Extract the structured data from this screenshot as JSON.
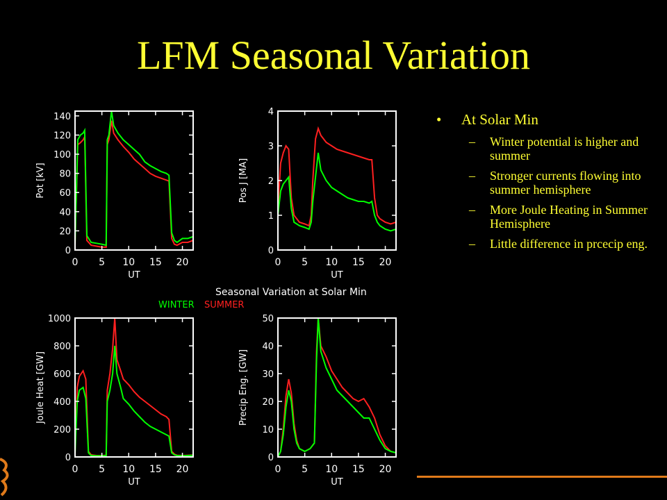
{
  "title": "LFM Seasonal Variation",
  "bullets": {
    "main": "At Solar Min",
    "items": [
      "Winter potential is higher and summer",
      "Stronger currents flowing into summer hemisphere",
      "More Joule Heating in Summer Hemisphere",
      "Little difference in prcecip eng."
    ]
  },
  "figure": {
    "caption": "Seasonal Variation at Solar Min",
    "legend": [
      {
        "label": "WINTER",
        "color": "#00ff00"
      },
      {
        "label": "SUMMER",
        "color": "#ff2020"
      }
    ]
  },
  "colors": {
    "title": "#ffff33",
    "text": "#ffff33",
    "axes": "#ffffff",
    "winter": "#00ff00",
    "summer": "#ff2020",
    "accent_line": "#e07a1a"
  },
  "chart_data": [
    {
      "type": "line",
      "xlabel": "UT",
      "ylabel": "Pot [kV]",
      "xlim": [
        0,
        22
      ],
      "ylim": [
        0,
        145
      ],
      "xticks": [
        0,
        5,
        10,
        15,
        20
      ],
      "yticks": [
        0,
        20,
        40,
        60,
        80,
        100,
        120,
        140
      ],
      "series": [
        {
          "name": "WINTER",
          "color": "#00ff00",
          "x": [
            0,
            0.5,
            1,
            1.5,
            1.8,
            2.2,
            3,
            4,
            5,
            5.8,
            6.0,
            6.3,
            6.8,
            7.2,
            8,
            9,
            10,
            11,
            12,
            13,
            14,
            15,
            16,
            17,
            17.5,
            18.0,
            18.5,
            19,
            20,
            21,
            22
          ],
          "y": [
            5,
            115,
            120,
            122,
            125,
            15,
            8,
            7,
            6,
            5,
            115,
            120,
            145,
            130,
            122,
            115,
            110,
            105,
            100,
            92,
            88,
            85,
            82,
            80,
            78,
            18,
            10,
            8,
            12,
            12,
            14
          ]
        },
        {
          "name": "SUMMER",
          "color": "#ff2020",
          "x": [
            0,
            0.5,
            1,
            1.5,
            1.8,
            2.2,
            3,
            4,
            5,
            5.8,
            6.0,
            6.3,
            6.8,
            7.2,
            8,
            9,
            10,
            11,
            12,
            13,
            14,
            15,
            16,
            17,
            17.5,
            18.0,
            18.5,
            19,
            20,
            21,
            22
          ],
          "y": [
            5,
            110,
            112,
            115,
            118,
            10,
            5,
            4,
            3,
            3,
            110,
            115,
            135,
            122,
            115,
            108,
            102,
            95,
            90,
            85,
            80,
            77,
            75,
            73,
            72,
            12,
            6,
            5,
            8,
            8,
            10
          ]
        }
      ]
    },
    {
      "type": "line",
      "xlabel": "UT",
      "ylabel": "Pos J [MA]",
      "xlim": [
        0,
        22
      ],
      "ylim": [
        0,
        4
      ],
      "xticks": [
        0,
        5,
        10,
        15,
        20
      ],
      "yticks": [
        0,
        1,
        2,
        3,
        4
      ],
      "series": [
        {
          "name": "WINTER",
          "color": "#00ff00",
          "x": [
            0,
            0.5,
            1,
            1.5,
            2,
            2.5,
            3,
            4,
            5,
            5.8,
            6.2,
            6.5,
            7,
            7.5,
            8,
            9,
            10,
            11,
            12,
            13,
            14,
            15,
            16,
            17,
            17.5,
            18.0,
            18.5,
            19,
            20,
            21,
            22
          ],
          "y": [
            1.0,
            1.7,
            1.9,
            2.0,
            2.1,
            1.2,
            0.8,
            0.7,
            0.65,
            0.6,
            0.8,
            1.4,
            2.1,
            2.8,
            2.3,
            2.0,
            1.8,
            1.7,
            1.6,
            1.5,
            1.45,
            1.4,
            1.4,
            1.35,
            1.4,
            1.0,
            0.8,
            0.7,
            0.6,
            0.55,
            0.6
          ]
        },
        {
          "name": "SUMMER",
          "color": "#ff2020",
          "x": [
            0,
            0.5,
            1,
            1.5,
            2,
            2.5,
            3,
            4,
            5,
            5.8,
            6.2,
            6.5,
            7,
            7.5,
            8,
            9,
            10,
            11,
            12,
            13,
            14,
            15,
            16,
            17,
            17.5,
            18.0,
            18.5,
            19,
            20,
            21,
            22
          ],
          "y": [
            1.2,
            2.5,
            2.8,
            3.0,
            2.9,
            1.5,
            1.0,
            0.8,
            0.75,
            0.7,
            1.0,
            2.0,
            3.2,
            3.5,
            3.3,
            3.1,
            3.0,
            2.9,
            2.85,
            2.8,
            2.75,
            2.7,
            2.65,
            2.6,
            2.6,
            1.5,
            1.0,
            0.9,
            0.8,
            0.75,
            0.8
          ]
        }
      ]
    },
    {
      "type": "line",
      "xlabel": "UT",
      "ylabel": "Joule Heat [GW]",
      "xlim": [
        0,
        22
      ],
      "ylim": [
        0,
        1000
      ],
      "xticks": [
        0,
        5,
        10,
        15,
        20
      ],
      "yticks": [
        0,
        200,
        400,
        600,
        800,
        1000
      ],
      "series": [
        {
          "name": "WINTER",
          "color": "#00ff00",
          "x": [
            0,
            0.4,
            0.8,
            1.5,
            2.0,
            2.5,
            3,
            4,
            5,
            5.8,
            6.0,
            6.5,
            7.0,
            7.4,
            7.8,
            8.5,
            9,
            10,
            11,
            12,
            13,
            14,
            15,
            16,
            17,
            17.5,
            18.0,
            18.5,
            19,
            20,
            21,
            22
          ],
          "y": [
            20,
            400,
            480,
            500,
            420,
            30,
            10,
            8,
            8,
            10,
            400,
            480,
            600,
            800,
            600,
            500,
            420,
            380,
            330,
            290,
            250,
            220,
            200,
            180,
            160,
            150,
            30,
            15,
            10,
            8,
            10,
            12
          ]
        },
        {
          "name": "SUMMER",
          "color": "#ff2020",
          "x": [
            0,
            0.4,
            0.8,
            1.5,
            2.0,
            2.5,
            3,
            4,
            5,
            5.8,
            6.0,
            6.5,
            7.0,
            7.4,
            7.8,
            8.5,
            9,
            10,
            11,
            12,
            13,
            14,
            15,
            16,
            17,
            17.5,
            18.0,
            18.5,
            19,
            20,
            21,
            22
          ],
          "y": [
            20,
            500,
            580,
            620,
            560,
            40,
            15,
            10,
            10,
            12,
            480,
            600,
            780,
            1000,
            700,
            620,
            560,
            520,
            470,
            430,
            400,
            370,
            340,
            310,
            290,
            270,
            40,
            20,
            12,
            10,
            12,
            14
          ]
        }
      ]
    },
    {
      "type": "line",
      "xlabel": "UT",
      "ylabel": "Precip Eng. [GW]",
      "xlim": [
        0,
        22
      ],
      "ylim": [
        0,
        50
      ],
      "xticks": [
        0,
        5,
        10,
        15,
        20
      ],
      "yticks": [
        0,
        10,
        20,
        30,
        40,
        50
      ],
      "series": [
        {
          "name": "WINTER",
          "color": "#00ff00",
          "x": [
            0,
            0.5,
            1,
            1.5,
            2,
            2.5,
            3,
            3.5,
            4,
            5,
            6,
            6.8,
            7.2,
            7.5,
            8,
            9,
            10,
            11,
            12,
            13,
            14,
            15,
            16,
            17,
            18,
            19,
            20,
            21,
            22
          ],
          "y": [
            0,
            2,
            8,
            18,
            24,
            20,
            10,
            5,
            3,
            2,
            3,
            5,
            35,
            50,
            38,
            32,
            28,
            24,
            22,
            20,
            18,
            16,
            14,
            14,
            10,
            6,
            3,
            2,
            1.5
          ]
        },
        {
          "name": "SUMMER",
          "color": "#ff2020",
          "x": [
            0,
            0.5,
            1,
            1.5,
            2,
            2.5,
            3,
            3.5,
            4,
            5,
            6,
            6.8,
            7.2,
            7.5,
            8,
            9,
            10,
            11,
            12,
            13,
            14,
            15,
            16,
            17,
            18,
            19,
            20,
            21,
            22
          ],
          "y": [
            0,
            2,
            10,
            22,
            28,
            23,
            12,
            6,
            3,
            2,
            3,
            5,
            38,
            50,
            40,
            36,
            31,
            28,
            25,
            23,
            21,
            20,
            21,
            18,
            14,
            8,
            4,
            2,
            1.5
          ]
        }
      ]
    }
  ]
}
